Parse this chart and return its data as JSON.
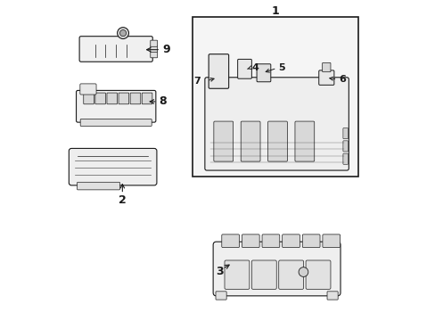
{
  "bg_color": "#ffffff",
  "line_color": "#1a1a1a",
  "label_color": "#000000"
}
